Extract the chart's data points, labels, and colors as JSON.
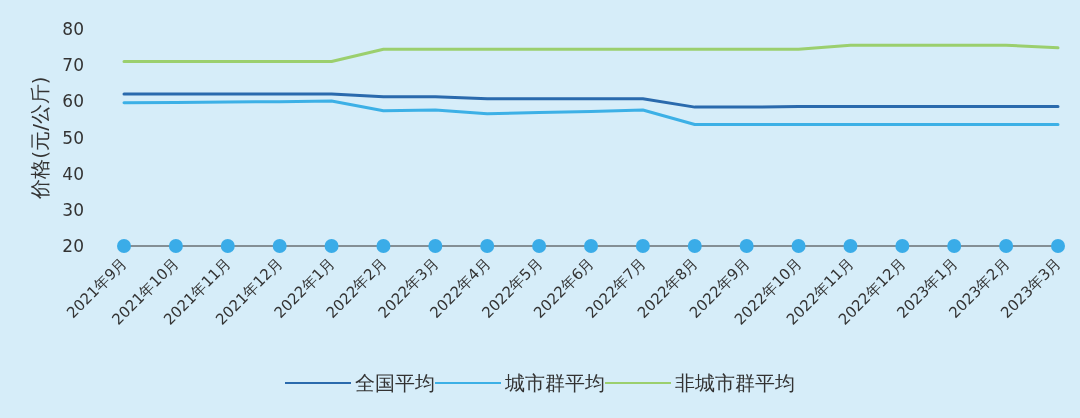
{
  "chart_data": {
    "type": "line",
    "ylabel": "价格(元/公斤)",
    "categories": [
      "2021年9月",
      "2021年10月",
      "2021年11月",
      "2021年12月",
      "2022年1月",
      "2022年2月",
      "2022年3月",
      "2022年4月",
      "2022年5月",
      "2022年6月",
      "2022年7月",
      "2022年8月",
      "2022年9月",
      "2022年10月",
      "2022年11月",
      "2022年12月",
      "2023年1月",
      "2023年2月",
      "2023年3月"
    ],
    "series": [
      {
        "name": "全国平均",
        "color": "#2a6aad",
        "values": [
          62.0,
          62.0,
          62.0,
          62.0,
          62.0,
          61.3,
          61.3,
          60.7,
          60.7,
          60.7,
          60.7,
          58.4,
          58.4,
          58.6,
          58.6,
          58.6,
          58.6,
          58.6,
          58.6
        ]
      },
      {
        "name": "城市群平均",
        "color": "#3cb0e6",
        "values": [
          59.6,
          59.7,
          59.8,
          59.9,
          60.1,
          57.4,
          57.6,
          56.6,
          56.9,
          57.2,
          57.6,
          53.6,
          53.6,
          53.6,
          53.6,
          53.6,
          53.6,
          53.6,
          53.6
        ]
      },
      {
        "name": "非城市群平均",
        "color": "#9bcf6e",
        "values": [
          71,
          71,
          71,
          71,
          71,
          74.4,
          74.4,
          74.4,
          74.4,
          74.4,
          74.4,
          74.4,
          74.4,
          74.4,
          75.5,
          75.5,
          75.5,
          75.5,
          74.8
        ]
      },
      {
        "type": "scatter",
        "marker": "circle",
        "color": "#3aace8",
        "values": [
          20,
          20,
          20,
          20,
          20,
          20,
          20,
          20,
          20,
          20,
          20,
          20,
          20,
          20,
          20,
          20,
          20,
          20,
          20
        ]
      }
    ],
    "ylim": [
      20,
      80
    ],
    "yticks": [
      20,
      30,
      40,
      50,
      60,
      70,
      80
    ],
    "grid": false,
    "legend": "bottom",
    "marker": "none",
    "line_style": "solid"
  }
}
